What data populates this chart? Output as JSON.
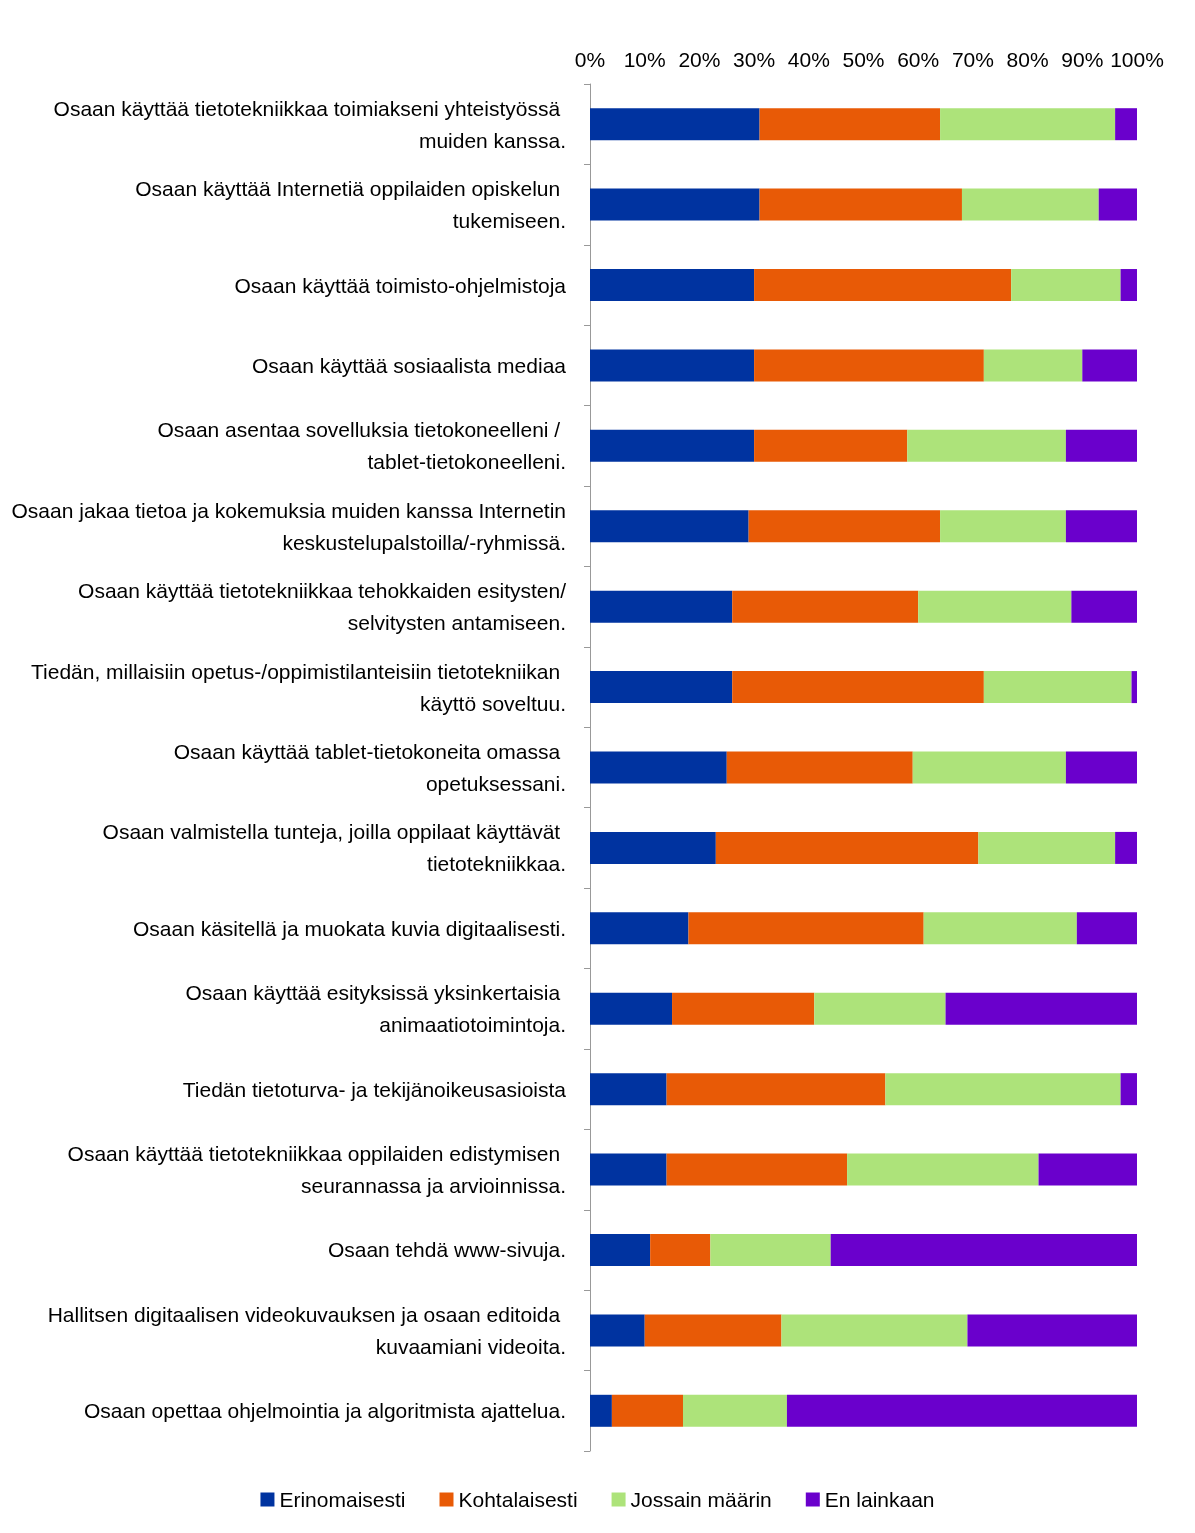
{
  "chart_data": {
    "type": "bar",
    "orientation": "horizontal",
    "stacked": true,
    "grid": false,
    "legend": "bottom",
    "categories": [
      "Osaan käyttää tietotekniikkaa toimiakseni yhteistyössä muiden kanssa.",
      "Osaan käyttää Internetiä oppilaiden opiskelun tukemiseen.",
      "Osaan käyttää toimisto-ohjelmistoja",
      "Osaan käyttää sosiaalista mediaa",
      "Osaan asentaa sovelluksia tietokoneelleni / tablet-tietokoneelleni.",
      "Osaan jakaa tietoa ja kokemuksia muiden kanssa Internetin keskustelupalstoilla/-ryhmissä.",
      "Osaan käyttää tietotekniikkaa tehokkaiden esitysten/selvitysten antamiseen.",
      "Tiedän, millaisiin opetus-/oppimistilanteisiin tietotekniikan käyttö soveltuu.",
      "Osaan käyttää tablet-tietokoneita omassa opetuksessani.",
      "Osaan valmistella tunteja, joilla oppilaat käyttävät tietotekniikkaa.",
      "Osaan käsitellä ja muokata kuvia digitaalisesti.",
      "Osaan käyttää esityksissä yksinkertaisia animaatiotoimintoja.",
      "Tiedän tietoturva- ja tekijänoikeusasioista",
      "Osaan käyttää tietotekniikkaa oppilaiden edistymisen seurannassa ja arvioinnissa.",
      "Osaan tehdä www-sivuja.",
      "Hallitsen digitaalisen videokuvauksen ja osaan editoida kuvaamiani videoita.",
      "Osaan opettaa ohjelmointia ja algoritmista ajattelua."
    ],
    "series": [
      {
        "name": "Erinomaisesti",
        "color": "#0033a0",
        "values": [
          31,
          31,
          30,
          30,
          30,
          29,
          26,
          26,
          25,
          23,
          18,
          15,
          14,
          14,
          11,
          10,
          4
        ]
      },
      {
        "name": "Kohtalaisesti",
        "color": "#e85a06",
        "values": [
          33,
          37,
          47,
          42,
          28,
          35,
          34,
          46,
          34,
          48,
          43,
          26,
          40,
          33,
          11,
          25,
          13
        ]
      },
      {
        "name": "Jossain määrin",
        "color": "#ade37a",
        "values": [
          32,
          25,
          20,
          18,
          29,
          23,
          28,
          27,
          28,
          25,
          28,
          24,
          43,
          35,
          22,
          34,
          19
        ]
      },
      {
        "name": "En lainkaan",
        "color": "#6a00cc",
        "values": [
          4,
          7,
          3,
          10,
          13,
          13,
          12,
          1,
          13,
          4,
          11,
          35,
          3,
          18,
          56,
          31,
          64
        ]
      }
    ],
    "xlim": [
      0,
      100
    ],
    "xticks": [
      {
        "value": 0,
        "label": "0%"
      },
      {
        "value": 10,
        "label": "10%"
      },
      {
        "value": 20,
        "label": "20%"
      },
      {
        "value": 30,
        "label": "30%"
      },
      {
        "value": 40,
        "label": "40%"
      },
      {
        "value": 50,
        "label": "50%"
      },
      {
        "value": 60,
        "label": "60%"
      },
      {
        "value": 70,
        "label": "70%"
      },
      {
        "value": 80,
        "label": "80%"
      },
      {
        "value": 90,
        "label": "90%"
      },
      {
        "value": 100,
        "label": "100%"
      }
    ]
  }
}
